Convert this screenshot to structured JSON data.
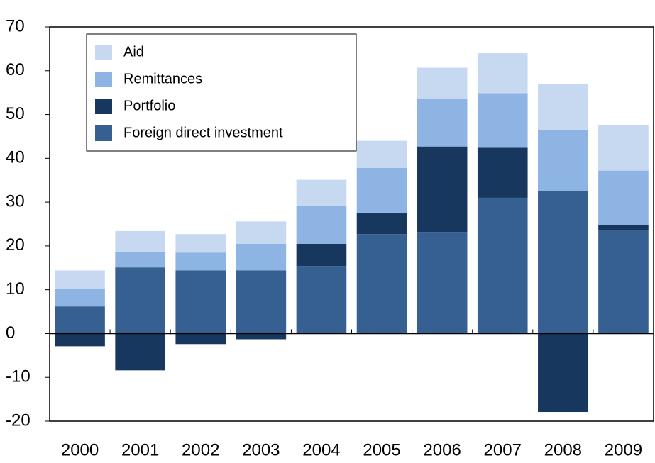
{
  "chart_data": {
    "type": "stacked_bar",
    "categories": [
      "2000",
      "2001",
      "2002",
      "2003",
      "2004",
      "2005",
      "2006",
      "2007",
      "2008",
      "2009"
    ],
    "series": [
      {
        "name": "Foreign direct investment",
        "color": "#376092",
        "values": [
          6.2,
          15.1,
          14.4,
          14.4,
          15.4,
          22.7,
          23.2,
          31.0,
          32.6,
          23.7
        ]
      },
      {
        "name": "Portfolio",
        "color": "#17375e",
        "values": [
          -2.9,
          -8.4,
          -2.4,
          -1.3,
          5.1,
          4.9,
          19.5,
          11.4,
          -17.9,
          1.0
        ]
      },
      {
        "name": "Remittances",
        "color": "#8eb4e3",
        "values": [
          4.0,
          3.6,
          4.1,
          6.1,
          8.7,
          10.2,
          10.9,
          12.5,
          13.8,
          12.5
        ]
      },
      {
        "name": "Aid",
        "color": "#c6d9f1",
        "values": [
          4.2,
          4.7,
          4.2,
          5.1,
          5.9,
          6.2,
          7.1,
          9.1,
          10.6,
          10.4
        ]
      }
    ],
    "ylim": [
      -20,
      70
    ],
    "yticks": [
      -20,
      -10,
      0,
      10,
      20,
      30,
      40,
      50,
      60,
      70
    ],
    "legend": "top-left"
  }
}
